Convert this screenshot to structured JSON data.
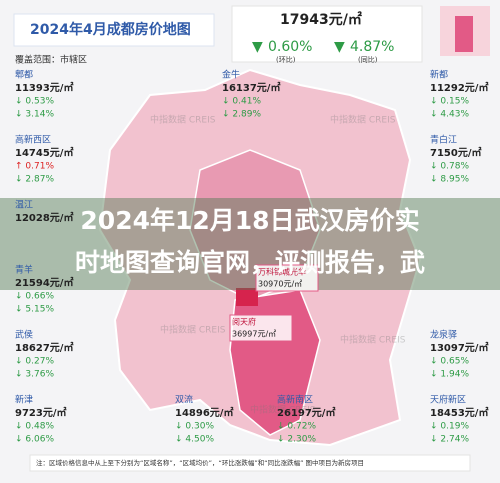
{
  "header": {
    "title": "2024年4月成都房价地图",
    "scope": "覆盖范围：市辖区",
    "avg_price": "17943元/㎡",
    "mom": "0.60%",
    "mom_label": "(环比)",
    "yoy": "4.87%",
    "yoy_label": "(同比)"
  },
  "districts": [
    {
      "name": "郫都",
      "price": "11393元/㎡",
      "mom": "↓ 0.53%",
      "yoy": "↓ 3.14%"
    },
    {
      "name": "金牛",
      "price": "16137元/㎡",
      "mom": "↓ 0.41%",
      "yoy": "↓ 2.89%"
    },
    {
      "name": "新都",
      "price": "11292元/㎡",
      "mom": "↓ 0.15%",
      "yoy": "↓ 4.43%"
    },
    {
      "name": "高新西区",
      "price": "14745元/㎡",
      "mom": "↑ 0.71%",
      "yoy": "↓ 2.87%"
    },
    {
      "name": "青白江",
      "price": "7150元/㎡",
      "mom": "↓ 0.78%",
      "yoy": "↓ 8.95%"
    },
    {
      "name": "温江",
      "price": "12028元/㎡"
    },
    {
      "name": "青羊",
      "price": "21594元/㎡",
      "mom": "↓ 0.66%",
      "yoy": "↓ 5.15%"
    },
    {
      "name": "武侯",
      "price": "18627元/㎡",
      "mom": "↓ 0.27%",
      "yoy": "↓ 3.76%"
    },
    {
      "name": "龙泉驿",
      "price": "13097元/㎡",
      "mom": "↓ 0.65%",
      "yoy": "↓ 1.94%"
    },
    {
      "name": "新津",
      "price": "9723元/㎡",
      "mom": "↓ 0.48%",
      "yoy": "↓ 6.06%"
    },
    {
      "name": "双流",
      "price": "14896元/㎡",
      "mom": "↓ 0.30%",
      "yoy": "↓ 4.50%"
    },
    {
      "name": "高新南区",
      "price": "26197元/㎡",
      "mom": "↓ 0.72%",
      "yoy": "↓ 2.30%"
    },
    {
      "name": "天府新区",
      "price": "18453元/㎡",
      "mom": "↓ 0.19%",
      "yoy": "↓ 2.74%"
    }
  ],
  "projects": [
    {
      "name": "万科锦城光华",
      "price": "30970元/㎡"
    },
    {
      "name": "阅天府",
      "price": "36997元/㎡"
    }
  ],
  "watermark": "中指数据 CREIS",
  "overlay_caption": [
    "2024年12月18日武汉房价实",
    "时地图查询官网，评测报告，武"
  ],
  "footer": "注：区域价格信息中从上至下分别为“区域名称”，“区域均价”，“环比涨跌幅”和“同比涨跌幅”   图中项目为新房项目"
}
